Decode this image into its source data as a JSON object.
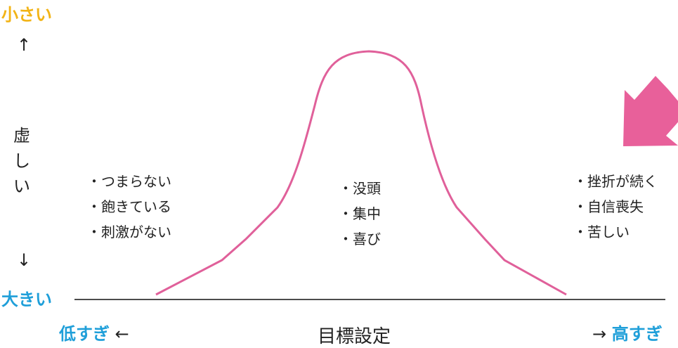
{
  "y_axis": {
    "top_label": "小さい",
    "up_arrow": "↑",
    "title_lines": [
      "虚",
      "し",
      "い"
    ],
    "down_arrow": "↓",
    "bottom_label": "大きい"
  },
  "x_axis": {
    "left_label": "低すぎ",
    "left_arrow": "←",
    "title": "目標設定",
    "right_arrow": "→",
    "right_label": "高すぎ"
  },
  "left_notes": [
    "・つまらない",
    "・飽きている",
    "・刺激がない"
  ],
  "center_notes": [
    "・没頭",
    "・集中",
    "・喜び"
  ],
  "right_notes": [
    "・挫折が続く",
    "・自信喪失",
    "・苦しい"
  ],
  "colors": {
    "curve": "#e0609a",
    "arrow": "#e8609a",
    "top_label": "#f2b417",
    "axis_labels": "#1f9fd9"
  }
}
